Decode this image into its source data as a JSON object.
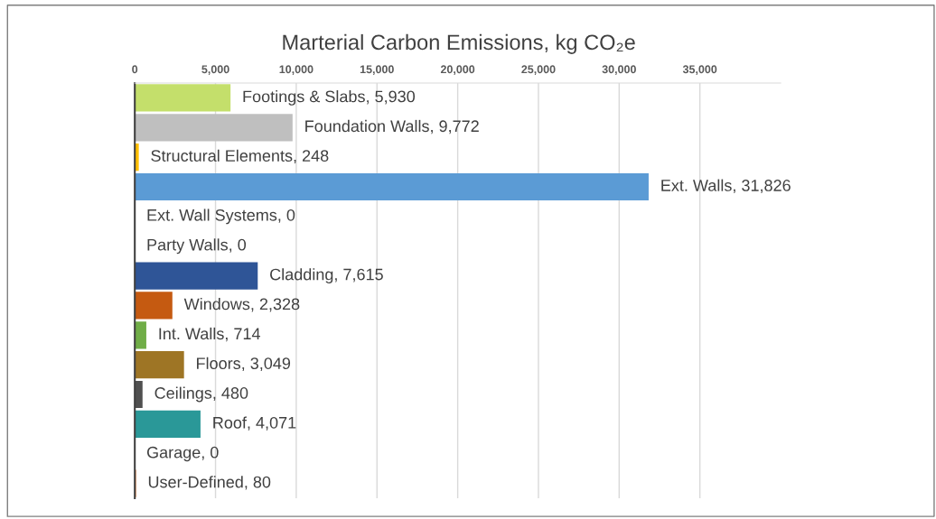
{
  "chart_data": {
    "type": "bar",
    "orientation": "horizontal",
    "title": "Marterial Carbon Emissions, kg CO₂e",
    "categories": [
      null,
      null,
      null,
      null,
      null,
      null,
      null,
      null,
      null,
      null,
      null,
      null,
      null,
      null
    ],
    "values": [
      5930,
      9772,
      248,
      31826,
      0,
      0,
      7615,
      2328,
      714,
      3049,
      480,
      4071,
      0,
      80
    ],
    "value_labels": [
      "Footings & Slabs, 5,930",
      "Foundation Walls, 9,772",
      "Structural Elements, 248",
      "Ext. Walls, 31,826",
      "Ext. Wall Systems, 0",
      "Party Walls, 0",
      "Cladding, 7,615",
      "Windows, 2,328",
      "Int. Walls, 714",
      "Floors, 3,049",
      "Ceilings, 480",
      "Roof, 4,071",
      "Garage, 0",
      "User-Defined, 80"
    ],
    "colors": [
      "#c4df6b",
      "#bfbfbf",
      "#ffc000",
      "#5b9bd5",
      "#a5a5a5",
      "#4472c4",
      "#2f5597",
      "#c55a11",
      "#70ad47",
      "#9e7525",
      "#505050",
      "#2a9898",
      "#7f7f7f",
      "#e07b39"
    ],
    "xlim": [
      0,
      40000
    ],
    "xticks": [
      {
        "value": 0,
        "label": "0"
      },
      {
        "value": 5000,
        "label": "5,000"
      },
      {
        "value": 10000,
        "label": "10,000"
      },
      {
        "value": 15000,
        "label": "15,000"
      },
      {
        "value": 20000,
        "label": "20,000"
      },
      {
        "value": 25000,
        "label": "25,000"
      },
      {
        "value": 30000,
        "label": "30,000"
      },
      {
        "value": 35000,
        "label": "35,000"
      }
    ],
    "grid": "x",
    "legend": false
  }
}
